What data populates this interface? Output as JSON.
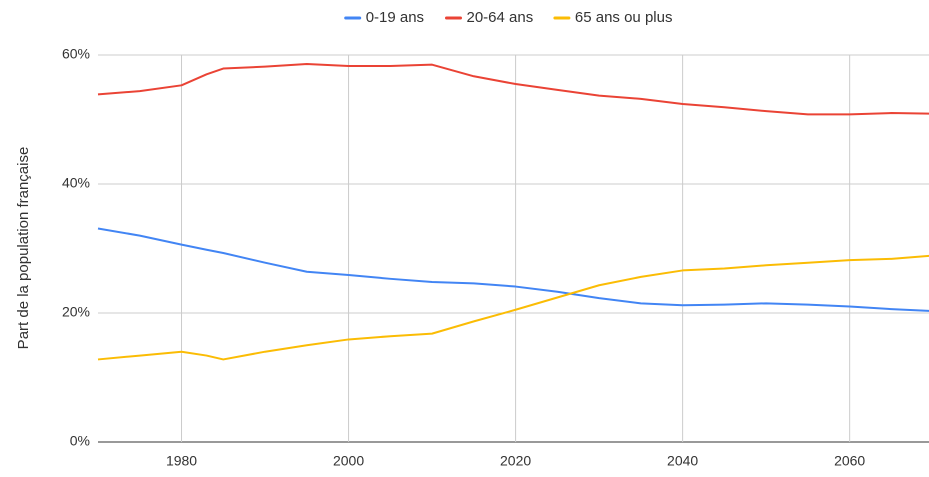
{
  "chart_data": {
    "type": "line",
    "y_label": "Part de la population française",
    "x": [
      1970,
      1975,
      1980,
      1983,
      1985,
      1990,
      1995,
      2000,
      2005,
      2010,
      2015,
      2020,
      2025,
      2030,
      2035,
      2040,
      2045,
      2050,
      2055,
      2060,
      2065,
      2070
    ],
    "series": [
      {
        "name": "0-19 ans",
        "color": "#4285f4",
        "values": [
          33.1,
          32.0,
          30.6,
          29.8,
          29.3,
          27.8,
          26.4,
          25.9,
          25.3,
          24.8,
          24.6,
          24.1,
          23.3,
          22.3,
          21.5,
          21.2,
          21.3,
          21.5,
          21.3,
          21.0,
          20.6,
          20.3
        ]
      },
      {
        "name": "20-64 ans",
        "color": "#ea4335",
        "values": [
          53.9,
          54.4,
          55.3,
          57.0,
          57.9,
          58.2,
          58.6,
          58.3,
          58.3,
          58.5,
          56.7,
          55.5,
          54.6,
          53.7,
          53.2,
          52.4,
          51.9,
          51.3,
          50.8,
          50.8,
          51.0,
          50.9
        ]
      },
      {
        "name": "65 ans ou plus",
        "color": "#fbbc04",
        "values": [
          12.8,
          13.4,
          14.0,
          13.4,
          12.8,
          14.0,
          15.0,
          15.9,
          16.4,
          16.8,
          18.7,
          20.5,
          22.4,
          24.3,
          25.6,
          26.6,
          26.9,
          27.4,
          27.8,
          28.2,
          28.4,
          28.9
        ]
      }
    ],
    "xlim": [
      1970,
      2069.5
    ],
    "xticks": [
      1980,
      2000,
      2020,
      2040,
      2060
    ],
    "ylim": [
      0,
      60
    ],
    "yticks": [
      {
        "value": 0,
        "label": "0%"
      },
      {
        "value": 20,
        "label": "20%"
      },
      {
        "value": 40,
        "label": "40%"
      },
      {
        "value": 60,
        "label": "60%"
      }
    ],
    "grid": true,
    "legend": "top"
  }
}
